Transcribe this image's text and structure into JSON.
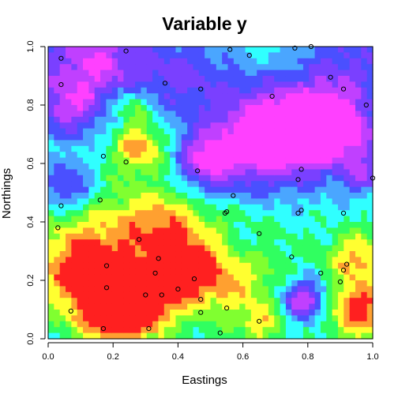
{
  "chart_data": {
    "type": "heatmap",
    "title": "Variable y",
    "xlabel": "Eastings",
    "ylabel": "Northings",
    "xlim": [
      0,
      1
    ],
    "ylim": [
      0,
      1
    ],
    "xticks": [
      "0.0",
      "0.2",
      "0.4",
      "0.6",
      "0.8",
      "1.0"
    ],
    "yticks": [
      "0.0",
      "0.2",
      "0.4",
      "0.6",
      "0.8",
      "1.0"
    ],
    "colormap": [
      "#ff2020",
      "#ffa030",
      "#ffff30",
      "#80ff30",
      "#30ff60",
      "#30ffff",
      "#4aa6ff",
      "#4a50ff",
      "#7a40ff",
      "#c040ff",
      "#ff40ff"
    ],
    "points": [
      {
        "x": 0.04,
        "y": 0.96
      },
      {
        "x": 0.24,
        "y": 0.985
      },
      {
        "x": 0.56,
        "y": 0.99
      },
      {
        "x": 0.62,
        "y": 0.97
      },
      {
        "x": 0.76,
        "y": 0.995
      },
      {
        "x": 0.81,
        "y": 1.0
      },
      {
        "x": 0.04,
        "y": 0.87
      },
      {
        "x": 0.36,
        "y": 0.875
      },
      {
        "x": 0.47,
        "y": 0.855
      },
      {
        "x": 0.87,
        "y": 0.895
      },
      {
        "x": 0.91,
        "y": 0.855
      },
      {
        "x": 0.98,
        "y": 0.8
      },
      {
        "x": 0.69,
        "y": 0.83
      },
      {
        "x": 0.17,
        "y": 0.625
      },
      {
        "x": 0.24,
        "y": 0.605
      },
      {
        "x": 0.46,
        "y": 0.575
      },
      {
        "x": 0.78,
        "y": 0.58
      },
      {
        "x": 0.77,
        "y": 0.545
      },
      {
        "x": 1.0,
        "y": 0.55
      },
      {
        "x": 0.04,
        "y": 0.455
      },
      {
        "x": 0.16,
        "y": 0.475
      },
      {
        "x": 0.57,
        "y": 0.49
      },
      {
        "x": 0.55,
        "y": 0.435
      },
      {
        "x": 0.545,
        "y": 0.43
      },
      {
        "x": 0.78,
        "y": 0.44
      },
      {
        "x": 0.77,
        "y": 0.43
      },
      {
        "x": 0.91,
        "y": 0.43
      },
      {
        "x": 0.03,
        "y": 0.38
      },
      {
        "x": 0.28,
        "y": 0.34
      },
      {
        "x": 0.65,
        "y": 0.36
      },
      {
        "x": 0.34,
        "y": 0.275
      },
      {
        "x": 0.75,
        "y": 0.28
      },
      {
        "x": 0.92,
        "y": 0.255
      },
      {
        "x": 0.18,
        "y": 0.25
      },
      {
        "x": 0.33,
        "y": 0.225
      },
      {
        "x": 0.84,
        "y": 0.225
      },
      {
        "x": 0.91,
        "y": 0.235
      },
      {
        "x": 0.45,
        "y": 0.205
      },
      {
        "x": 0.9,
        "y": 0.195
      },
      {
        "x": 0.18,
        "y": 0.175
      },
      {
        "x": 0.4,
        "y": 0.17
      },
      {
        "x": 0.3,
        "y": 0.15
      },
      {
        "x": 0.35,
        "y": 0.15
      },
      {
        "x": 0.47,
        "y": 0.135
      },
      {
        "x": 0.07,
        "y": 0.095
      },
      {
        "x": 0.55,
        "y": 0.105
      },
      {
        "x": 0.47,
        "y": 0.09
      },
      {
        "x": 0.65,
        "y": 0.06
      },
      {
        "x": 0.17,
        "y": 0.035
      },
      {
        "x": 0.31,
        "y": 0.035
      },
      {
        "x": 0.53,
        "y": 0.02
      }
    ],
    "grid": false,
    "legend": "none"
  }
}
